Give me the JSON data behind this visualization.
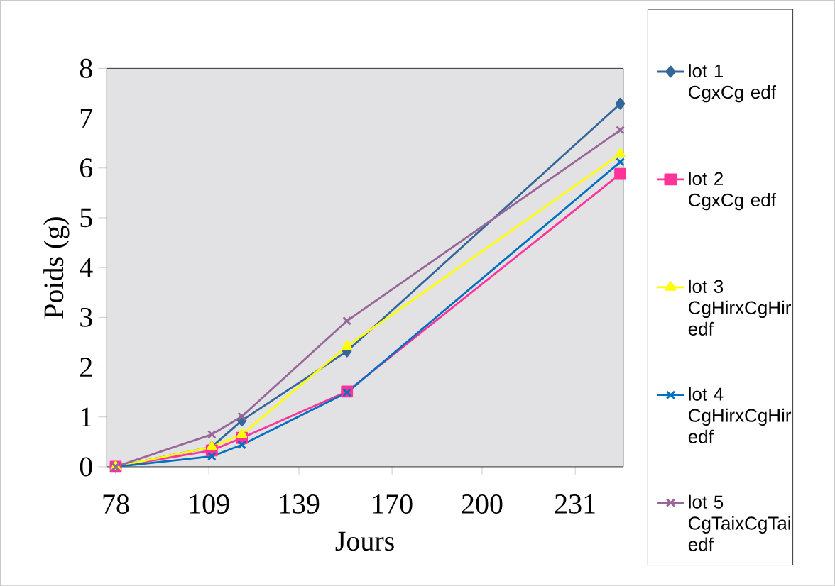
{
  "chart_data": {
    "type": "line",
    "xlabel": "Jours",
    "ylabel": "Poids (g)",
    "x": [
      78,
      110,
      120,
      155,
      246
    ],
    "xlim": [
      75,
      247
    ],
    "xticks": [
      78,
      109,
      139,
      170,
      200,
      231
    ],
    "ylim": [
      0,
      8
    ],
    "yticks": [
      0,
      1,
      2,
      3,
      4,
      5,
      6,
      7,
      8
    ],
    "grid": false,
    "legend": "right",
    "series": [
      {
        "name": "lot 1 CgxCg edf",
        "color": "#336699",
        "marker": "diamond",
        "values": [
          0,
          0.4,
          0.93,
          2.32,
          7.29
        ]
      },
      {
        "name": "lot 2 CgxCg edf",
        "color": "#ff3399",
        "marker": "square",
        "values": [
          0,
          0.33,
          0.58,
          1.51,
          5.88
        ]
      },
      {
        "name": "lot 3 CgHirxCgHir edf",
        "color": "#ffff00",
        "marker": "triangle",
        "values": [
          0,
          0.4,
          0.65,
          2.42,
          6.28
        ]
      },
      {
        "name": "lot 4 CgHirxCgHir edf",
        "color": "#0070c0",
        "marker": "cross",
        "values": [
          0,
          0.21,
          0.44,
          1.49,
          6.12
        ]
      },
      {
        "name": "lot 5 CgTaixCgTai edf",
        "color": "#996699",
        "marker": "cross",
        "values": [
          0,
          0.65,
          1.01,
          2.93,
          6.76
        ]
      }
    ]
  }
}
